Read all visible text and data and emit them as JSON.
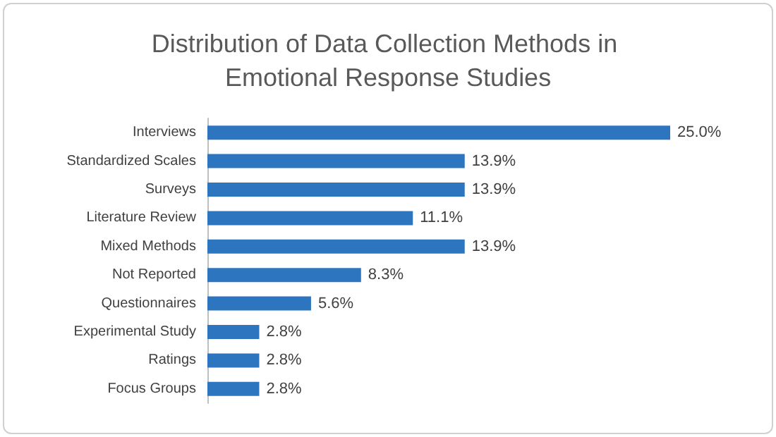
{
  "chart_data": {
    "type": "bar",
    "orientation": "horizontal",
    "title": "Distribution of Data Collection Methods in Emotional Response Studies",
    "categories": [
      "Interviews",
      "Standardized Scales",
      "Surveys",
      "Literature Review",
      "Mixed Methods",
      "Not Reported",
      "Questionnaires",
      "Experimental Study",
      "Ratings",
      "Focus Groups"
    ],
    "values": [
      25.0,
      13.9,
      13.9,
      11.1,
      13.9,
      8.3,
      5.6,
      2.8,
      2.8,
      2.8
    ],
    "value_labels": [
      "25.0%",
      "13.9%",
      "13.9%",
      "11.1%",
      "13.9%",
      "8.3%",
      "5.6%",
      "2.8%",
      "2.8%",
      "2.8%"
    ],
    "color": "#2e75c0",
    "tick_labels": "y"
  }
}
